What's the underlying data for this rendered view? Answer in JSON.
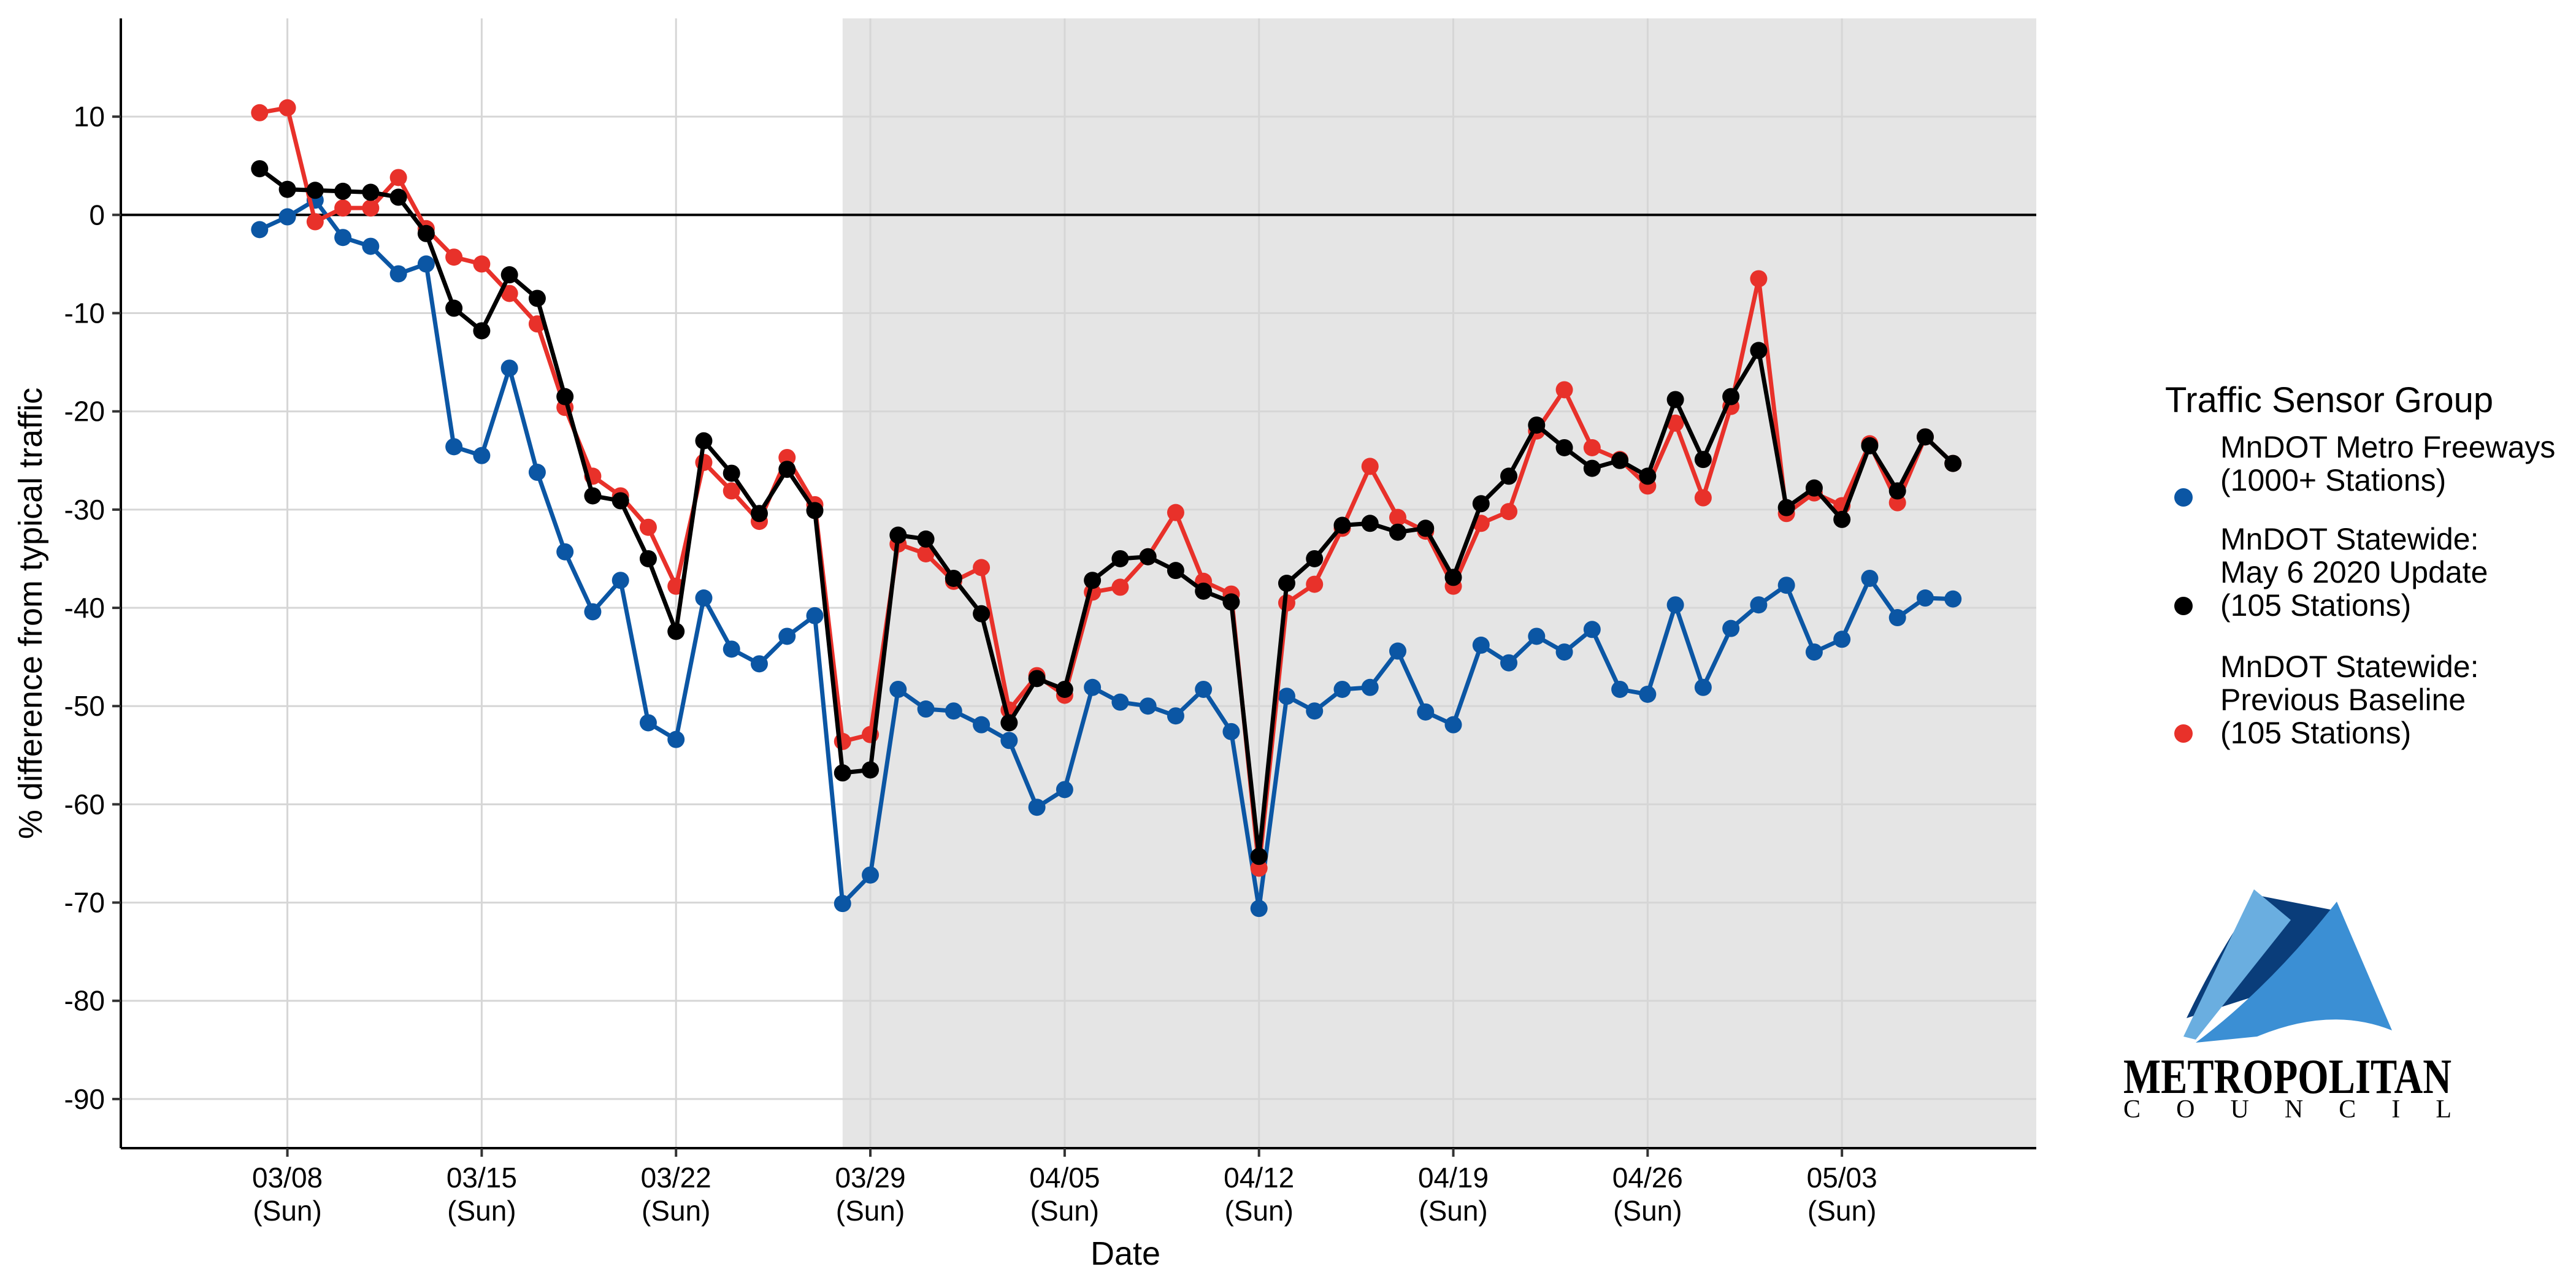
{
  "chart_data": {
    "type": "line",
    "xlabel": "Date",
    "ylabel": "% difference from typical traffic",
    "ylim": [
      -95,
      20
    ],
    "y_ticks": [
      10,
      0,
      -10,
      -20,
      -30,
      -40,
      -50,
      -60,
      -70,
      -80,
      -90
    ],
    "x_ticks": [
      {
        "date": "2020-03-08",
        "label1": "03/08",
        "label2": "(Sun)"
      },
      {
        "date": "2020-03-15",
        "label1": "03/15",
        "label2": "(Sun)"
      },
      {
        "date": "2020-03-22",
        "label1": "03/22",
        "label2": "(Sun)"
      },
      {
        "date": "2020-03-29",
        "label1": "03/29",
        "label2": "(Sun)"
      },
      {
        "date": "2020-04-05",
        "label1": "04/05",
        "label2": "(Sun)"
      },
      {
        "date": "2020-04-12",
        "label1": "04/12",
        "label2": "(Sun)"
      },
      {
        "date": "2020-04-19",
        "label1": "04/19",
        "label2": "(Sun)"
      },
      {
        "date": "2020-04-26",
        "label1": "04/26",
        "label2": "(Sun)"
      },
      {
        "date": "2020-05-03",
        "label1": "05/03",
        "label2": "(Sun)"
      }
    ],
    "xlim": [
      "2020-03-02",
      "2020-05-10"
    ],
    "grid": true,
    "reference_line_y": 0,
    "shaded_region": {
      "from": "2020-03-28",
      "to": "2020-05-10",
      "color": "#e5e5e5"
    },
    "legend_position": "right",
    "legend_title": "Traffic Sensor Group",
    "x_dates": [
      "2020-03-07",
      "2020-03-08",
      "2020-03-09",
      "2020-03-10",
      "2020-03-11",
      "2020-03-12",
      "2020-03-13",
      "2020-03-14",
      "2020-03-15",
      "2020-03-16",
      "2020-03-17",
      "2020-03-18",
      "2020-03-19",
      "2020-03-20",
      "2020-03-21",
      "2020-03-22",
      "2020-03-23",
      "2020-03-24",
      "2020-03-25",
      "2020-03-26",
      "2020-03-27",
      "2020-03-28",
      "2020-03-29",
      "2020-03-30",
      "2020-03-31",
      "2020-04-01",
      "2020-04-02",
      "2020-04-03",
      "2020-04-04",
      "2020-04-05",
      "2020-04-06",
      "2020-04-07",
      "2020-04-08",
      "2020-04-09",
      "2020-04-10",
      "2020-04-11",
      "2020-04-12",
      "2020-04-13",
      "2020-04-14",
      "2020-04-15",
      "2020-04-16",
      "2020-04-17",
      "2020-04-18",
      "2020-04-19",
      "2020-04-20",
      "2020-04-21",
      "2020-04-22",
      "2020-04-23",
      "2020-04-24",
      "2020-04-25",
      "2020-04-26",
      "2020-04-27",
      "2020-04-28",
      "2020-04-29",
      "2020-04-30",
      "2020-05-01",
      "2020-05-02",
      "2020-05-03",
      "2020-05-04",
      "2020-05-05",
      "2020-05-06",
      "2020-05-07"
    ],
    "series": [
      {
        "name": "MnDOT Metro Freeways\n(1000+ Stations)",
        "color": "#0b56a4",
        "values": [
          -1.5,
          -0.2,
          1.5,
          -2.3,
          -3.2,
          -6.0,
          -5.0,
          -23.6,
          -24.5,
          -15.6,
          -26.2,
          -34.3,
          -40.4,
          -37.2,
          -51.7,
          -53.4,
          -39.0,
          -44.2,
          -45.7,
          -42.9,
          -40.8,
          -70.1,
          -67.2,
          -48.3,
          -50.3,
          -50.5,
          -51.9,
          -53.5,
          -60.3,
          -58.5,
          -48.1,
          -49.6,
          -50.0,
          -51.0,
          -48.3,
          -52.6,
          -70.6,
          -49.0,
          -50.5,
          -48.3,
          -48.1,
          -44.4,
          -50.6,
          -51.9,
          -43.8,
          -45.6,
          -42.9,
          -44.5,
          -42.2,
          -48.3,
          -48.8,
          -39.7,
          -48.1,
          -42.1,
          -39.7,
          -37.7,
          -44.5,
          -43.2,
          -37.0,
          -41.0,
          -39.0,
          -39.1
        ]
      },
      {
        "name": "MnDOT Statewide:\nMay 6 2020 Update\n(105 Stations)",
        "color": "#000000",
        "values": [
          4.7,
          2.6,
          2.5,
          2.4,
          2.3,
          1.8,
          -1.9,
          -9.5,
          -11.8,
          -6.1,
          -8.5,
          -18.5,
          -28.6,
          -29.1,
          -35.0,
          -42.4,
          -23.0,
          -26.3,
          -30.4,
          -25.9,
          -30.1,
          -56.8,
          -56.5,
          -32.6,
          -33.0,
          -37.0,
          -40.6,
          -51.7,
          -47.2,
          -48.3,
          -37.2,
          -35.0,
          -34.8,
          -36.2,
          -38.3,
          -39.4,
          -65.3,
          -37.5,
          -35.0,
          -31.6,
          -31.4,
          -32.3,
          -31.9,
          -36.9,
          -29.4,
          -26.6,
          -21.4,
          -23.7,
          -25.8,
          -25.0,
          -26.6,
          -18.8,
          -24.9,
          -18.5,
          -13.8,
          -29.8,
          -27.8,
          -31.0,
          -23.5,
          -28.1,
          -22.6,
          -25.3
        ]
      },
      {
        "name": "MnDOT Statewide:\nPrevious Baseline\n(105 Stations)",
        "color": "#e8312a",
        "values": [
          10.4,
          10.9,
          -0.7,
          0.7,
          0.7,
          3.8,
          -1.4,
          -4.3,
          -5.0,
          -8.0,
          -11.1,
          -19.6,
          -26.6,
          -28.6,
          -31.8,
          -37.8,
          -25.2,
          -28.1,
          -31.2,
          -24.7,
          -29.5,
          -53.6,
          -52.9,
          -33.5,
          -34.5,
          -37.3,
          -35.9,
          -50.4,
          -46.9,
          -48.9,
          -38.4,
          -37.9,
          -34.8,
          -30.3,
          -37.3,
          -38.6,
          -66.5,
          -39.5,
          -37.6,
          -31.9,
          -25.6,
          -30.8,
          -32.2,
          -37.8,
          -31.4,
          -30.2,
          -22.0,
          -17.8,
          -23.7,
          -24.9,
          -27.6,
          -21.2,
          -28.8,
          -19.5,
          -6.5,
          -30.4,
          -28.3,
          -29.6,
          -23.3,
          -29.3,
          -22.6,
          -25.3
        ]
      }
    ]
  },
  "logo": {
    "line1": "METROPOLITAN",
    "line2": "C O U N C I L"
  }
}
